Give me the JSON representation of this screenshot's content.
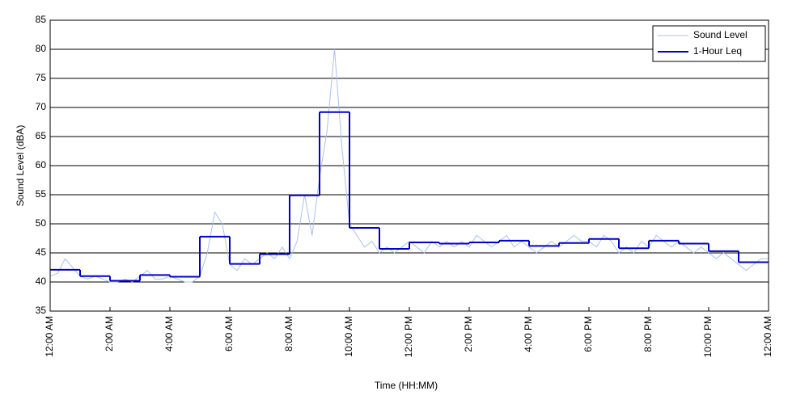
{
  "chart_data": {
    "type": "line",
    "xlabel": "Time (HH:MM)",
    "ylabel": "Sound Level (dBA)",
    "xlim": [
      0,
      24
    ],
    "ylim": [
      35,
      85
    ],
    "xticks": [
      {
        "value": 0,
        "label": "12:00 AM"
      },
      {
        "value": 2,
        "label": "2:00 AM"
      },
      {
        "value": 4,
        "label": "4:00 AM"
      },
      {
        "value": 6,
        "label": "6:00 AM"
      },
      {
        "value": 8,
        "label": "8:00 AM"
      },
      {
        "value": 10,
        "label": "10:00 AM"
      },
      {
        "value": 12,
        "label": "12:00 PM"
      },
      {
        "value": 14,
        "label": "2:00 PM"
      },
      {
        "value": 16,
        "label": "4:00 PM"
      },
      {
        "value": 18,
        "label": "6:00 PM"
      },
      {
        "value": 20,
        "label": "8:00 PM"
      },
      {
        "value": 22,
        "label": "10:00 PM"
      },
      {
        "value": 24,
        "label": "12:00 AM"
      }
    ],
    "yticks": [
      35,
      40,
      45,
      50,
      55,
      60,
      65,
      70,
      75,
      80,
      85
    ],
    "grid": true,
    "legend": "upper right",
    "series": [
      {
        "name": "Sound Level",
        "color": "#a9c1f0",
        "step": false,
        "x": [
          0,
          0.25,
          0.5,
          0.75,
          1,
          1.25,
          1.5,
          1.75,
          2,
          2.25,
          2.5,
          2.75,
          3,
          3.25,
          3.5,
          3.75,
          4,
          4.25,
          4.5,
          4.75,
          5,
          5.25,
          5.5,
          5.75,
          6,
          6.25,
          6.5,
          6.75,
          7,
          7.25,
          7.5,
          7.75,
          8,
          8.25,
          8.5,
          8.75,
          9,
          9.25,
          9.5,
          9.75,
          10,
          10.25,
          10.5,
          10.75,
          11,
          11.25,
          11.5,
          11.75,
          12,
          12.25,
          12.5,
          12.75,
          13,
          13.25,
          13.5,
          13.75,
          14,
          14.25,
          14.5,
          14.75,
          15,
          15.25,
          15.5,
          15.75,
          16,
          16.25,
          16.5,
          16.75,
          17,
          17.25,
          17.5,
          17.75,
          18,
          18.25,
          18.5,
          18.75,
          19,
          19.25,
          19.5,
          19.75,
          20,
          20.25,
          20.5,
          20.75,
          21,
          21.25,
          21.5,
          21.75,
          22,
          22.25,
          22.5,
          22.75,
          23,
          23.25,
          23.5,
          23.75,
          24
        ],
        "values": [
          41,
          41.5,
          44,
          42.5,
          41,
          40.5,
          41,
          40.5,
          40,
          40,
          40.5,
          40,
          41,
          42,
          40.5,
          40.5,
          41,
          40.5,
          40,
          40,
          41,
          45,
          52,
          50,
          43,
          42,
          44,
          43,
          44,
          45,
          44,
          46,
          44,
          47,
          55,
          48,
          58,
          66,
          80,
          63,
          50,
          48,
          46,
          47,
          45,
          46,
          45,
          46,
          47,
          46,
          45,
          47,
          46,
          47,
          46,
          47,
          46,
          48,
          47,
          46,
          47,
          48,
          46,
          47,
          46,
          45,
          46,
          47,
          46,
          47,
          48,
          47,
          47,
          46,
          48,
          47,
          45,
          46,
          45,
          47,
          46,
          48,
          47,
          46,
          47,
          46,
          45,
          46,
          45,
          44,
          45,
          44,
          43,
          42,
          43,
          44,
          44
        ]
      },
      {
        "name": "1-Hour Leq",
        "color": "#0000cc",
        "step": true,
        "x": [
          0,
          1,
          2,
          3,
          4,
          5,
          6,
          7,
          8,
          9,
          10,
          11,
          12,
          13,
          14,
          15,
          16,
          17,
          18,
          19,
          20,
          21,
          22,
          23
        ],
        "values": [
          42.1,
          41.0,
          40.2,
          41.2,
          40.9,
          47.8,
          43.1,
          44.8,
          54.9,
          69.2,
          49.3,
          45.7,
          46.8,
          46.6,
          46.8,
          47.1,
          46.2,
          46.7,
          47.4,
          45.8,
          47.1,
          46.6,
          45.3,
          43.4
        ]
      }
    ]
  }
}
